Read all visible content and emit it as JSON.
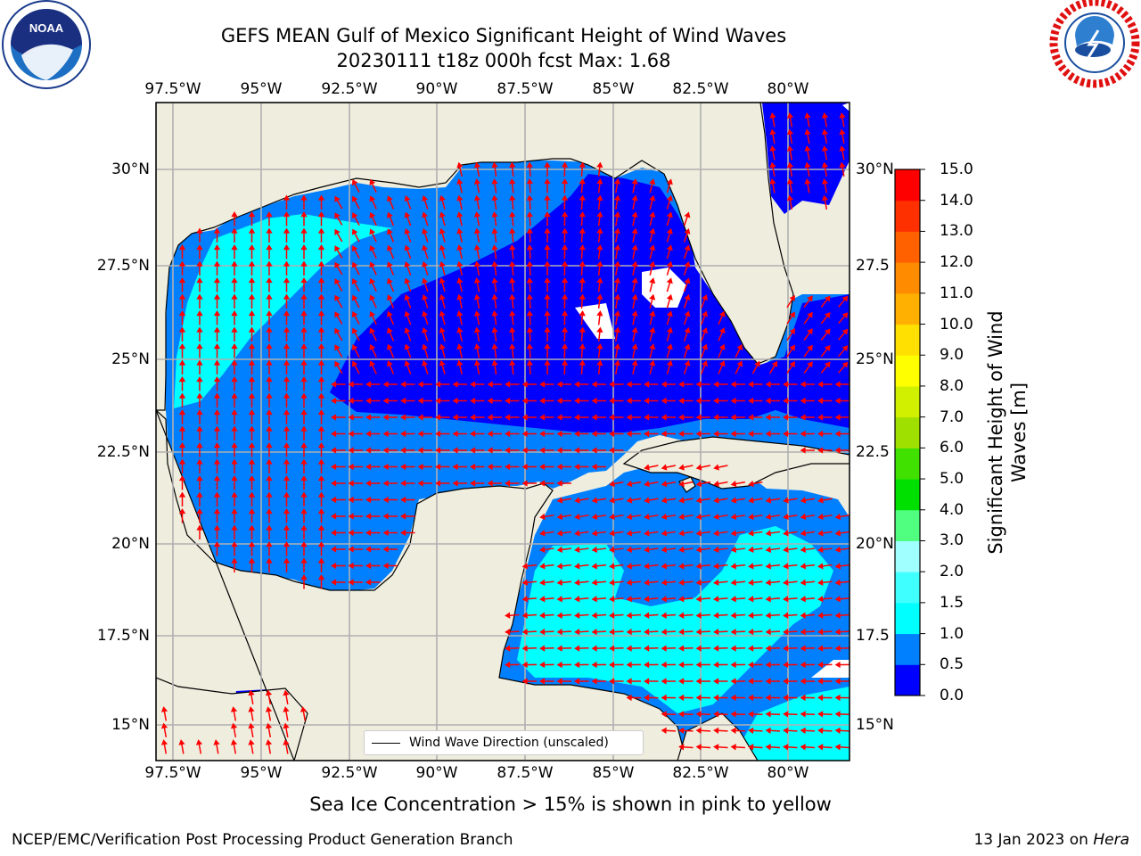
{
  "title": {
    "line1": "GEFS MEAN Gulf of Mexico Significant Height of Wind Waves",
    "line2": "20230111 t18z 000h fcst   Max: 1.68"
  },
  "logos": {
    "left": {
      "icon": "noaa-logo",
      "text": "NOAA"
    },
    "right": {
      "icon": "national-weather-service-logo"
    }
  },
  "map": {
    "lon_ticks": [
      "97.5°W",
      "95°W",
      "92.5°W",
      "90°W",
      "87.5°W",
      "85°W",
      "82.5°W",
      "80°W"
    ],
    "lat_ticks_left": [
      "30°N",
      "27.5°N",
      "25°N",
      "22.5°N",
      "20°N",
      "17.5°N",
      "15°N"
    ],
    "lat_ticks_right": [
      "30°N",
      "27.5",
      "25°N",
      "22.5",
      "20°N",
      "17.5",
      "15°N"
    ],
    "land_color": "#eeedde",
    "grid_color": "#b0b0b0",
    "arrow_color": "#ff0000",
    "legend_label": "Wind Wave Direction (unscaled)"
  },
  "colorbar": {
    "title": "Significant Height of Wind Waves [m]",
    "labels": [
      "0.0",
      "0.5",
      "1.0",
      "1.5",
      "2.0",
      "3.0",
      "4.0",
      "5.0",
      "6.0",
      "7.0",
      "8.0",
      "9.0",
      "10.0",
      "11.0",
      "12.0",
      "13.0",
      "14.0",
      "15.0"
    ],
    "colors": [
      "#0000ff",
      "#0080ff",
      "#00ffff",
      "#40ffff",
      "#a0ffff",
      "#50ff80",
      "#00e000",
      "#40e000",
      "#a0e000",
      "#d0f000",
      "#ffff00",
      "#ffe000",
      "#ffb000",
      "#ff8c00",
      "#ff6000",
      "#ff3000",
      "#ff0000"
    ]
  },
  "footer": {
    "center": "Sea Ice Concentration > 15% is shown in pink to yellow",
    "left": "NCEP/EMC/Verification Post Processing Product Generation Branch",
    "right_date": "13 Jan 2023 on ",
    "right_host": "Hera"
  }
}
